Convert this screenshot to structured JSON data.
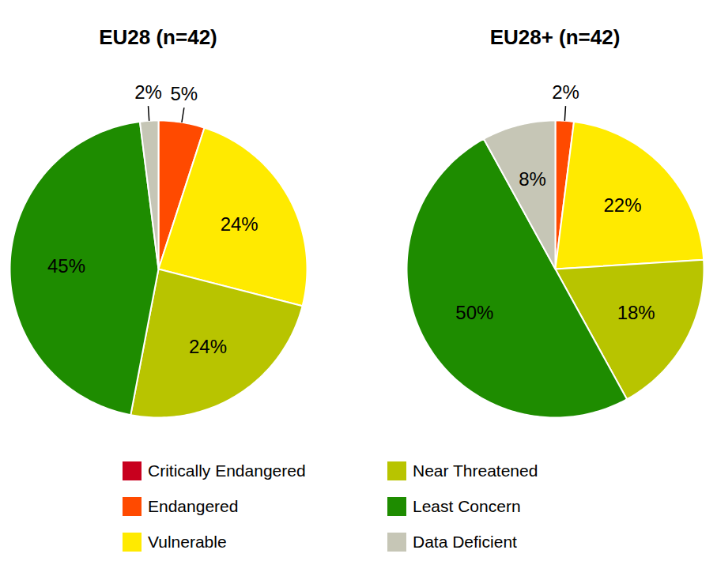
{
  "chart_data": [
    {
      "type": "pie",
      "title": "EU28 (n=42)",
      "categories": [
        "Critically Endangered",
        "Endangered",
        "Vulnerable",
        "Near Threatened",
        "Least Concern",
        "Data Deficient"
      ],
      "values": [
        0,
        5,
        24,
        24,
        45,
        2
      ],
      "value_labels": [
        null,
        "5%",
        "24%",
        "24%",
        "45%",
        "2%"
      ],
      "colors": [
        "#c8001e",
        "#ff4a00",
        "#ffea00",
        "#b8c400",
        "#1e8c00",
        "#c6c6b6"
      ],
      "data_labels": true,
      "legend": "bottom"
    },
    {
      "type": "pie",
      "title": "EU28+ (n=42)",
      "categories": [
        "Critically Endangered",
        "Endangered",
        "Vulnerable",
        "Near Threatened",
        "Least Concern",
        "Data Deficient"
      ],
      "values": [
        0,
        2,
        22,
        18,
        50,
        8
      ],
      "value_labels": [
        null,
        "2%",
        "22%",
        "18%",
        "50%",
        "8%"
      ],
      "colors": [
        "#c8001e",
        "#ff4a00",
        "#ffea00",
        "#b8c400",
        "#1e8c00",
        "#c6c6b6"
      ],
      "data_labels": true,
      "legend": "bottom"
    }
  ]
}
